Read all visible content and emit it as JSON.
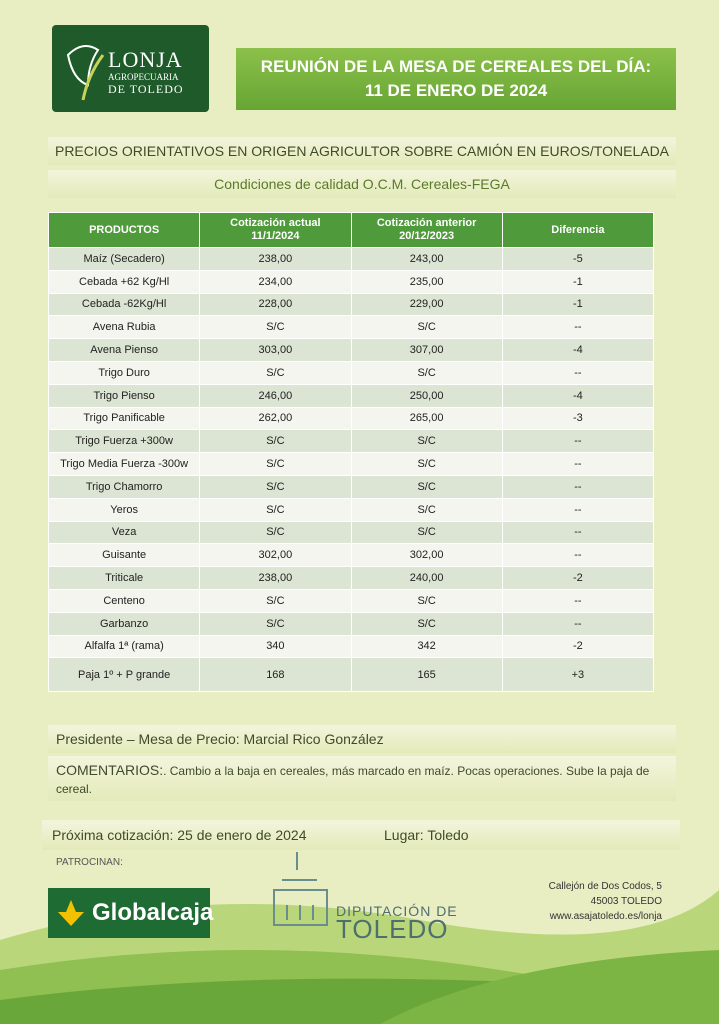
{
  "logo": {
    "line1": "LONJA",
    "line2": "AGROPECUARIA",
    "line3": "DE TOLEDO"
  },
  "header": {
    "title_line1": "REUNIÓN DE LA MESA DE CEREALES DEL DÍA:",
    "title_line2": "11 DE ENERO DE 2024"
  },
  "subtitle": "PRECIOS ORIENTATIVOS EN ORIGEN AGRICULTOR SOBRE CAMIÓN EN EUROS/TONELADA",
  "conditions": "Condiciones de calidad O.C.M. Cereales-FEGA",
  "table": {
    "columns": [
      {
        "title": "PRODUCTOS"
      },
      {
        "title": "Cotización actual",
        "date": "11/1/2024"
      },
      {
        "title": "Cotización anterior",
        "date": "20/12/2023"
      },
      {
        "title": "Diferencia"
      }
    ],
    "rows": [
      [
        "Maíz (Secadero)",
        "238,00",
        "243,00",
        "-5"
      ],
      [
        "Cebada +62 Kg/Hl",
        "234,00",
        "235,00",
        "-1"
      ],
      [
        "Cebada -62Kg/Hl",
        "228,00",
        "229,00",
        "-1"
      ],
      [
        "Avena Rubia",
        "S/C",
        "S/C",
        "--"
      ],
      [
        "Avena Pienso",
        "303,00",
        "307,00",
        "-4"
      ],
      [
        "Trigo Duro",
        "S/C",
        "S/C",
        "--"
      ],
      [
        "Trigo Pienso",
        "246,00",
        "250,00",
        "-4"
      ],
      [
        "Trigo Panificable",
        "262,00",
        "265,00",
        "-3"
      ],
      [
        "Trigo Fuerza +300w",
        "S/C",
        "S/C",
        "--"
      ],
      [
        "Trigo Media Fuerza -300w",
        "S/C",
        "S/C",
        "--"
      ],
      [
        "Trigo Chamorro",
        "S/C",
        "S/C",
        "--"
      ],
      [
        "Yeros",
        "S/C",
        "S/C",
        "--"
      ],
      [
        "Veza",
        "S/C",
        "S/C",
        "--"
      ],
      [
        "Guisante",
        "302,00",
        "302,00",
        "--"
      ],
      [
        "Triticale",
        "238,00",
        "240,00",
        "-2"
      ],
      [
        "Centeno",
        "S/C",
        "S/C",
        "--"
      ],
      [
        "Garbanzo",
        "S/C",
        "S/C",
        "--"
      ],
      [
        "Alfalfa  1ª (rama)",
        "340",
        "342",
        "-2"
      ],
      [
        "Paja 1º + P grande",
        "168",
        "165",
        "+3"
      ]
    ]
  },
  "president": "Presidente – Mesa de Precio: Marcial Rico González",
  "comments": {
    "label": "COMENTARIOS:",
    "text": ". Cambio a la baja en cereales, más marcado en maíz. Pocas operaciones. Sube la paja de cereal."
  },
  "next": {
    "date": "Próxima cotización: 25 de enero de 2024",
    "place": "Lugar: Toledo"
  },
  "sponsors": {
    "label": "PATROCINAN:",
    "globalcaja": "Globalcaja",
    "diputacion_line1": "DIPUTACIÓN DE",
    "diputacion_line2": "TOLEDO"
  },
  "address": {
    "line1": "Callejón de Dos Codos, 5",
    "line2": "45003 TOLEDO",
    "line3": "www.asajatoledo.es/lonja"
  }
}
